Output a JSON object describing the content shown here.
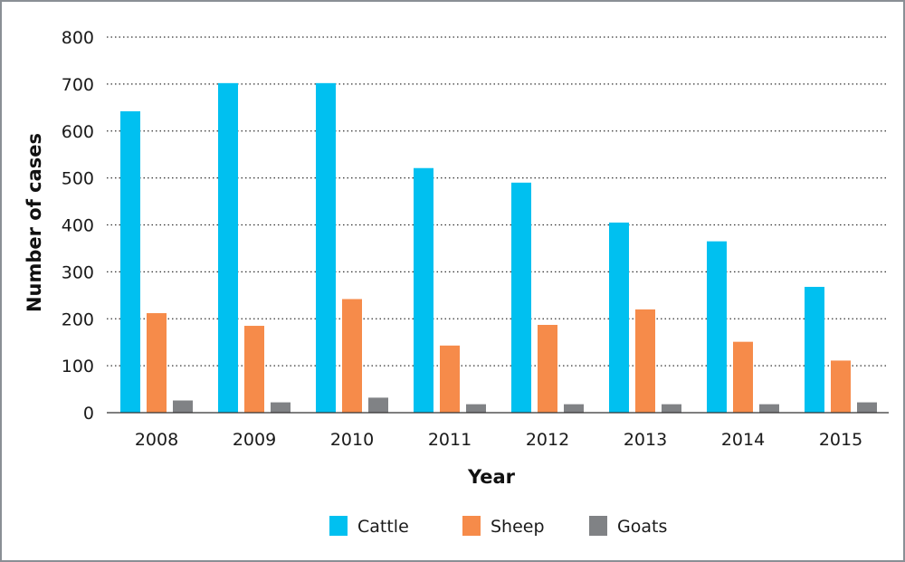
{
  "chart_data": {
    "type": "bar",
    "xlabel": "Year",
    "ylabel": "Number of cases",
    "ylim": [
      0,
      800
    ],
    "yticks": [
      0,
      100,
      200,
      300,
      400,
      500,
      600,
      700,
      800
    ],
    "grid": "horizontal dotted",
    "legend_position": "bottom",
    "categories": [
      "2008",
      "2009",
      "2010",
      "2011",
      "2012",
      "2013",
      "2014",
      "2015"
    ],
    "series": [
      {
        "name": "Cattle",
        "color": "#00c0f0",
        "values": [
          642,
          702,
          702,
          521,
          490,
          405,
          365,
          268
        ]
      },
      {
        "name": "Sheep",
        "color": "#f68b4a",
        "values": [
          212,
          185,
          242,
          143,
          187,
          220,
          151,
          111
        ]
      },
      {
        "name": "Goats",
        "color": "#808285",
        "values": [
          26,
          22,
          32,
          18,
          18,
          18,
          18,
          22
        ]
      }
    ]
  }
}
